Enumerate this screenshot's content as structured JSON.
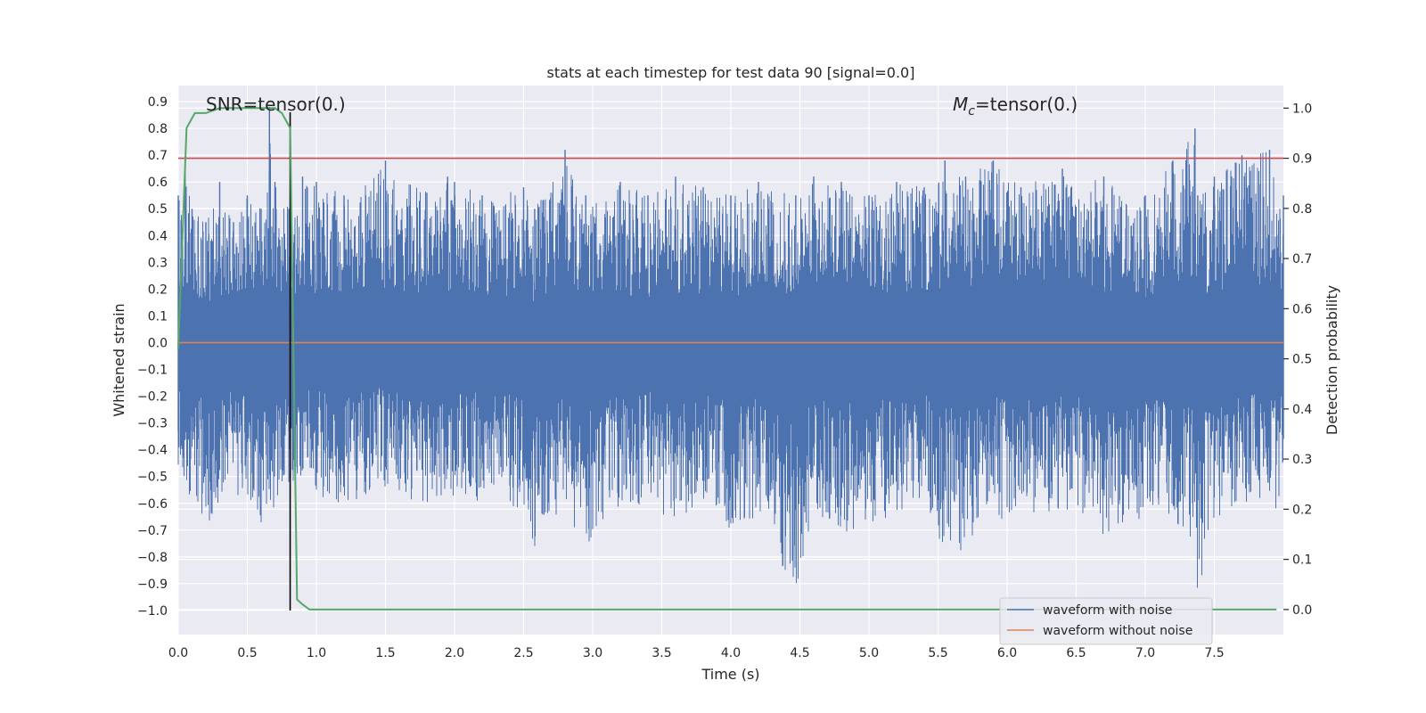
{
  "chart_data": {
    "type": "line",
    "title": "stats at each timestep for test data 90 [signal=0.0]",
    "xlabel": "Time (s)",
    "ylabel_left": "Whitened strain",
    "ylabel_right": "Detection probability",
    "xlim": [
      0.0,
      8.0
    ],
    "ylim_left": [
      -1.09,
      0.96
    ],
    "ylim_right": [
      -0.05,
      1.045
    ],
    "x_ticks": [
      "0.0",
      "0.5",
      "1.0",
      "1.5",
      "2.0",
      "2.5",
      "3.0",
      "3.5",
      "4.0",
      "4.5",
      "5.0",
      "5.5",
      "6.0",
      "6.5",
      "7.0",
      "7.5"
    ],
    "y_left_ticks": [
      "0.9",
      "0.8",
      "0.7",
      "0.6",
      "0.5",
      "0.4",
      "0.3",
      "0.2",
      "0.1",
      "0.0",
      "-0.1",
      "-0.2",
      "-0.3",
      "-0.4",
      "-0.5",
      "-0.6",
      "-0.7",
      "-0.8",
      "-0.9",
      "-1.0"
    ],
    "y_right_ticks": [
      "1.0",
      "0.9",
      "0.8",
      "0.7",
      "0.6",
      "0.5",
      "0.4",
      "0.3",
      "0.2",
      "0.1",
      "0.0"
    ],
    "annotations": {
      "snr": "SNR=tensor(0.)",
      "mc_symbol": "M",
      "mc_subscript": "c",
      "mc_value": "=tensor(0.)"
    },
    "threshold": {
      "value": 0.9,
      "axis": "right",
      "color": "#c44e52"
    },
    "marker_line": {
      "x": 0.81,
      "y_from": -1.0,
      "y_to": 0.86,
      "color": "#000000"
    },
    "series": [
      {
        "name": "waveform with noise",
        "axis": "left",
        "color": "#4c72b0",
        "envelope": {
          "x": [
            0.0,
            0.05,
            0.1,
            0.2,
            0.3,
            0.4,
            0.5,
            0.6,
            0.66,
            0.7,
            0.8,
            0.9,
            1.0,
            1.2,
            1.5,
            1.8,
            1.95,
            2.0,
            2.2,
            2.5,
            2.58,
            2.8,
            2.95,
            3.2,
            3.4,
            3.6,
            3.8,
            4.0,
            4.2,
            4.47,
            4.6,
            4.8,
            5.0,
            5.2,
            5.4,
            5.55,
            5.7,
            5.9,
            6.1,
            6.4,
            6.7,
            7.0,
            7.2,
            7.36,
            7.38,
            7.5,
            7.7,
            7.9,
            8.0
          ],
          "upper": [
            0.55,
            0.65,
            0.5,
            0.45,
            0.6,
            0.45,
            0.55,
            0.5,
            0.88,
            0.6,
            0.5,
            0.62,
            0.6,
            0.55,
            0.68,
            0.56,
            0.62,
            0.6,
            0.55,
            0.58,
            0.5,
            0.72,
            0.55,
            0.6,
            0.55,
            0.62,
            0.58,
            0.55,
            0.6,
            0.55,
            0.62,
            0.6,
            0.55,
            0.6,
            0.58,
            0.68,
            0.62,
            0.68,
            0.58,
            0.65,
            0.62,
            0.55,
            0.68,
            0.8,
            0.55,
            0.62,
            0.7,
            0.72,
            0.55
          ],
          "lower": [
            -0.55,
            -0.6,
            -0.55,
            -0.7,
            -0.6,
            -0.55,
            -0.62,
            -0.68,
            -0.6,
            -0.62,
            -0.55,
            -0.5,
            -0.58,
            -0.6,
            -0.55,
            -0.62,
            -0.55,
            -0.58,
            -0.6,
            -0.62,
            -0.78,
            -0.6,
            -0.8,
            -0.62,
            -0.6,
            -0.68,
            -0.62,
            -0.7,
            -0.65,
            -0.95,
            -0.65,
            -0.72,
            -0.68,
            -0.65,
            -0.6,
            -0.8,
            -0.78,
            -0.68,
            -0.65,
            -0.62,
            -0.72,
            -0.65,
            -0.68,
            -0.75,
            -0.98,
            -0.7,
            -0.62,
            -0.65,
            -0.6
          ]
        }
      },
      {
        "name": "waveform without noise",
        "axis": "left",
        "color": "#dd8452",
        "x": [
          0.0,
          8.0
        ],
        "y": [
          0.0,
          0.0
        ]
      },
      {
        "name": "detection probability",
        "axis": "right",
        "color": "#55a868",
        "x": [
          0.0,
          0.06,
          0.12,
          0.2,
          0.3,
          0.4,
          0.5,
          0.6,
          0.7,
          0.75,
          0.81,
          0.86,
          0.9,
          0.95,
          1.0,
          2.0,
          3.0,
          4.0,
          4.5,
          5.0,
          6.0,
          7.0,
          7.95
        ],
        "y": [
          0.52,
          0.96,
          0.99,
          0.99,
          1.0,
          1.0,
          1.0,
          1.0,
          1.0,
          0.99,
          0.96,
          0.02,
          0.01,
          0.0,
          0.0,
          0.0,
          0.0,
          0.0,
          0.0,
          0.0,
          0.0,
          0.0,
          0.0
        ]
      }
    ],
    "legend": {
      "position": "lower-right",
      "entries": [
        "waveform with noise",
        "waveform without noise"
      ]
    }
  }
}
